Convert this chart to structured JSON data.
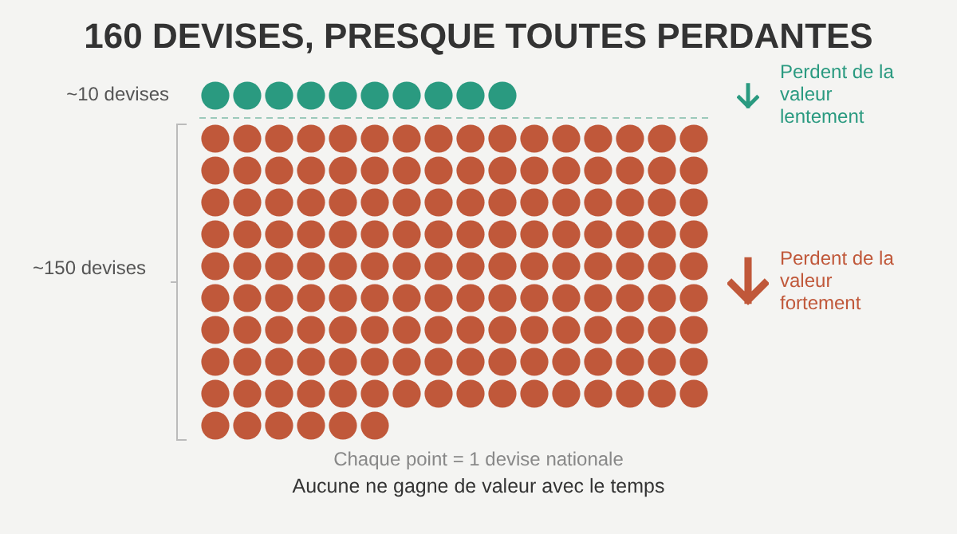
{
  "chart_data": {
    "type": "other",
    "title": "160 DEVISES, PRESQUE TOUTES PERDANTES",
    "categories": [
      null,
      null
    ],
    "values": [
      10,
      150
    ],
    "value_labels": [
      "~10 devises",
      "~150 devises"
    ],
    "colors": [
      "#2a9a80",
      "#c0583a"
    ],
    "annotations": [
      "Perdent de la valeur lentement",
      "Perdent de la valeur fortement",
      "Chaque point = 1 devise nationale",
      "Aucune ne gagne de valeur avec le temps"
    ]
  }
}
